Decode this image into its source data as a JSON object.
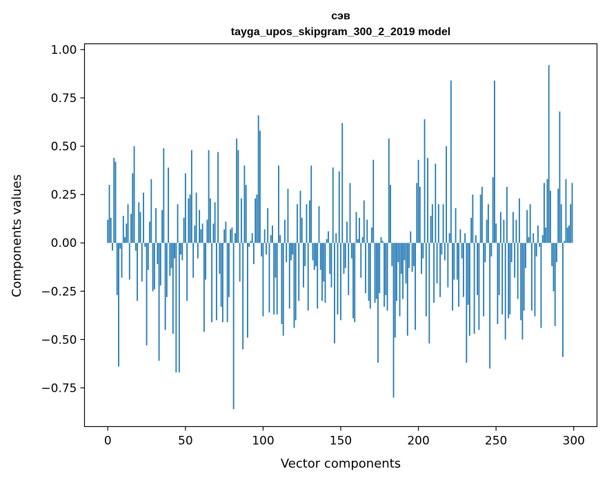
{
  "chart_data": {
    "type": "bar",
    "title_line1": "сэв",
    "title_line2": "tayga_upos_skipgram_300_2_2019 model",
    "xlabel": "Vector components",
    "ylabel": "Components values",
    "xlim": [
      -15,
      315
    ],
    "ylim": [
      -0.95,
      1.03
    ],
    "xticks": [
      0,
      50,
      100,
      150,
      200,
      250,
      300
    ],
    "xtick_labels": [
      "0",
      "50",
      "100",
      "150",
      "200",
      "250",
      "300"
    ],
    "yticks": [
      1.0,
      0.75,
      0.5,
      0.25,
      0.0,
      -0.25,
      -0.5,
      -0.75
    ],
    "ytick_labels": [
      "1.00",
      "0.75",
      "0.50",
      "0.25",
      "0.00",
      "−0.25",
      "−0.50",
      "−0.75"
    ],
    "bar_color": "#1f77b4",
    "grid": false,
    "values": [
      0.12,
      0.3,
      0.13,
      -0.04,
      0.44,
      0.42,
      -0.27,
      -0.64,
      -0.03,
      -0.18,
      0.14,
      0.03,
      0.1,
      0.2,
      -0.19,
      0.15,
      0.36,
      0.5,
      -0.04,
      -0.3,
      0.21,
      0.16,
      -0.2,
      0.26,
      -0.02,
      -0.53,
      -0.14,
      0.11,
      0.33,
      -0.25,
      -0.24,
      0.18,
      -0.11,
      -0.61,
      -0.22,
      0.17,
      0.49,
      -0.45,
      -0.28,
      0.39,
      -0.17,
      -0.13,
      -0.47,
      -0.08,
      -0.67,
      0.2,
      -0.67,
      -0.06,
      -0.09,
      0.13,
      0.36,
      -0.3,
      0.23,
      0.25,
      0.48,
      -0.18,
      0.09,
      0.26,
      -0.08,
      0.17,
      0.07,
      0.1,
      -0.46,
      -0.19,
      0.12,
      0.48,
      0.23,
      -0.41,
      0.1,
      0.21,
      -0.4,
      0.47,
      -0.16,
      -0.33,
      -0.41,
      0.07,
      0.11,
      -0.41,
      -0.28,
      0.07,
      0.08,
      -0.86,
      0.05,
      0.54,
      0.48,
      -0.2,
      0.23,
      -0.55,
      0.4,
      0.3,
      -0.49,
      -0.02,
      0.01,
      0.05,
      -0.11,
      0.23,
      0.25,
      0.66,
      0.58,
      -0.07,
      -0.38,
      0.07,
      -0.06,
      0.18,
      -0.36,
      0.04,
      0.09,
      -0.37,
      -0.18,
      -0.37,
      0.4,
      0.04,
      -0.42,
      -0.48,
      0.12,
      -0.1,
      0.28,
      -0.34,
      -0.09,
      -0.06,
      -0.44,
      -0.4,
      0.2,
      -0.3,
      0.27,
      0.13,
      -0.23,
      -0.12,
      0.2,
      -0.35,
      0.22,
      0.4,
      -0.09,
      -0.14,
      -0.12,
      -0.34,
      0.19,
      -0.14,
      -0.3,
      -0.2,
      -0.31,
      0.02,
      0.06,
      -0.16,
      -0.23,
      0.39,
      -0.52,
      0.05,
      -0.37,
      0.37,
      -0.4,
      0.62,
      -0.16,
      -0.13,
      0.11,
      -0.27,
      0.31,
      -0.08,
      -0.39,
      -0.41,
      0.16,
      0.02,
      0.13,
      -0.18,
      0.03,
      0.22,
      -0.26,
      0.12,
      -0.3,
      -0.34,
      0.08,
      0.43,
      -0.31,
      -0.29,
      -0.62,
      -0.26,
      0.03,
      0.01,
      -0.33,
      -0.27,
      -0.35,
      0.54,
      0.3,
      -0.12,
      -0.8,
      -0.49,
      -0.3,
      -0.1,
      -0.38,
      -0.16,
      -0.29,
      -0.09,
      -0.21,
      -0.48,
      -0.13,
      0.06,
      -0.15,
      -0.12,
      -0.45,
      0.31,
      0.43,
      0.29,
      -0.16,
      -0.08,
      0.64,
      -0.38,
      0.44,
      -0.52,
      0.14,
      0.2,
      -0.31,
      0.41,
      -0.21,
      0.2,
      -0.28,
      -0.06,
      0.2,
      -0.09,
      0.5,
      -0.23,
      0.05,
      0.84,
      -0.35,
      -0.19,
      0.18,
      -0.19,
      -0.33,
      0.07,
      -0.08,
      -0.28,
      0.05,
      -0.62,
      -0.32,
      -0.48,
      0.13,
      0.25,
      -0.47,
      0.04,
      -0.27,
      -0.45,
      0.25,
      0.29,
      -0.38,
      -0.1,
      0.12,
      0.2,
      -0.65,
      -0.07,
      0.34,
      0.84,
      0.1,
      -0.42,
      -0.27,
      0.16,
      -0.37,
      0.12,
      -0.5,
      0.29,
      -0.39,
      -0.37,
      -0.1,
      0.16,
      -0.18,
      0.12,
      -0.29,
      0.23,
      -0.4,
      -0.5,
      -0.35,
      -0.13,
      0.17,
      0.03,
      0.2,
      -0.35,
      0.05,
      -0.38,
      -0.07,
      0.09,
      -0.02,
      -0.44,
      0.04,
      0.31,
      0.08,
      0.33,
      0.92,
      0.27,
      -0.12,
      -0.25,
      -0.43,
      -0.1,
      0.28,
      0.68,
      0.2,
      -0.59,
      0.01,
      0.33,
      0.08,
      0.09,
      0.2,
      0.31
    ]
  }
}
